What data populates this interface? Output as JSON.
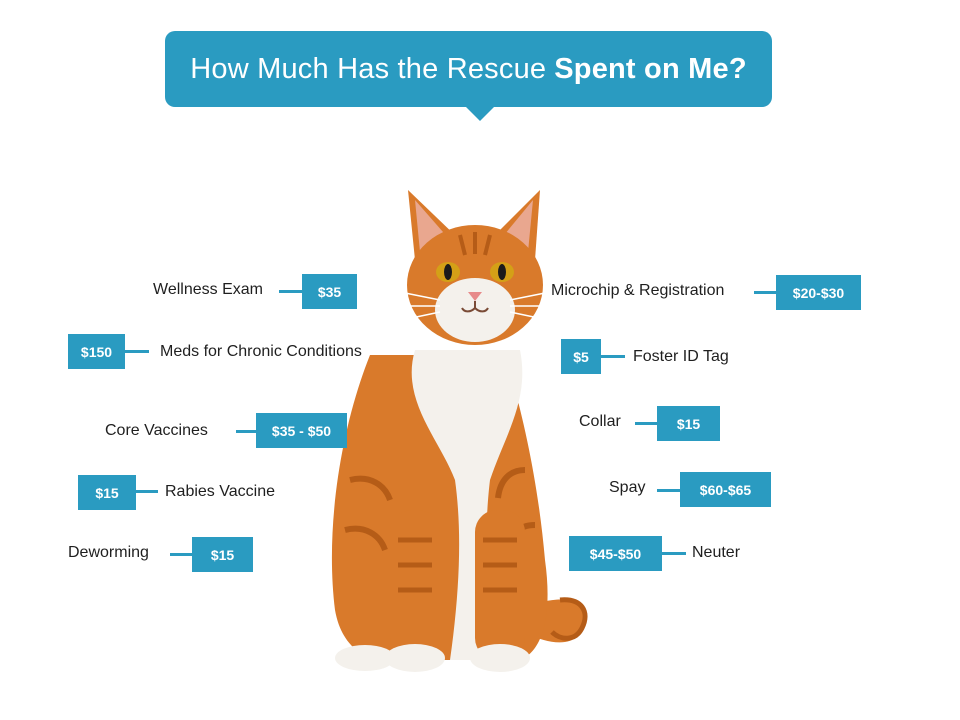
{
  "title": {
    "regular": "How Much Has the Rescue",
    "bold": "Spent on Me?"
  },
  "colors": {
    "accent": "#2a9bc1",
    "cat_fur": "#d97a2b",
    "cat_white": "#f4f1ec"
  },
  "items": {
    "wellness_exam": {
      "label": "Wellness Exam",
      "price": "$35"
    },
    "meds_chronic": {
      "label": "Meds for Chronic Conditions",
      "price": "$150"
    },
    "core_vaccines": {
      "label": "Core Vaccines",
      "price": "$35 - $50"
    },
    "rabies_vaccine": {
      "label": "Rabies Vaccine",
      "price": "$15"
    },
    "deworming": {
      "label": "Deworming",
      "price": "$15"
    },
    "microchip": {
      "label": "Microchip & Registration",
      "price": "$20-$30"
    },
    "foster_tag": {
      "label": "Foster ID Tag",
      "price": "$5"
    },
    "collar": {
      "label": "Collar",
      "price": "$15"
    },
    "spay": {
      "label": "Spay",
      "price": "$60-$65"
    },
    "neuter": {
      "label": "Neuter",
      "price": "$45-$50"
    }
  },
  "image": {
    "subject": "orange-tabby-cat-icon"
  }
}
